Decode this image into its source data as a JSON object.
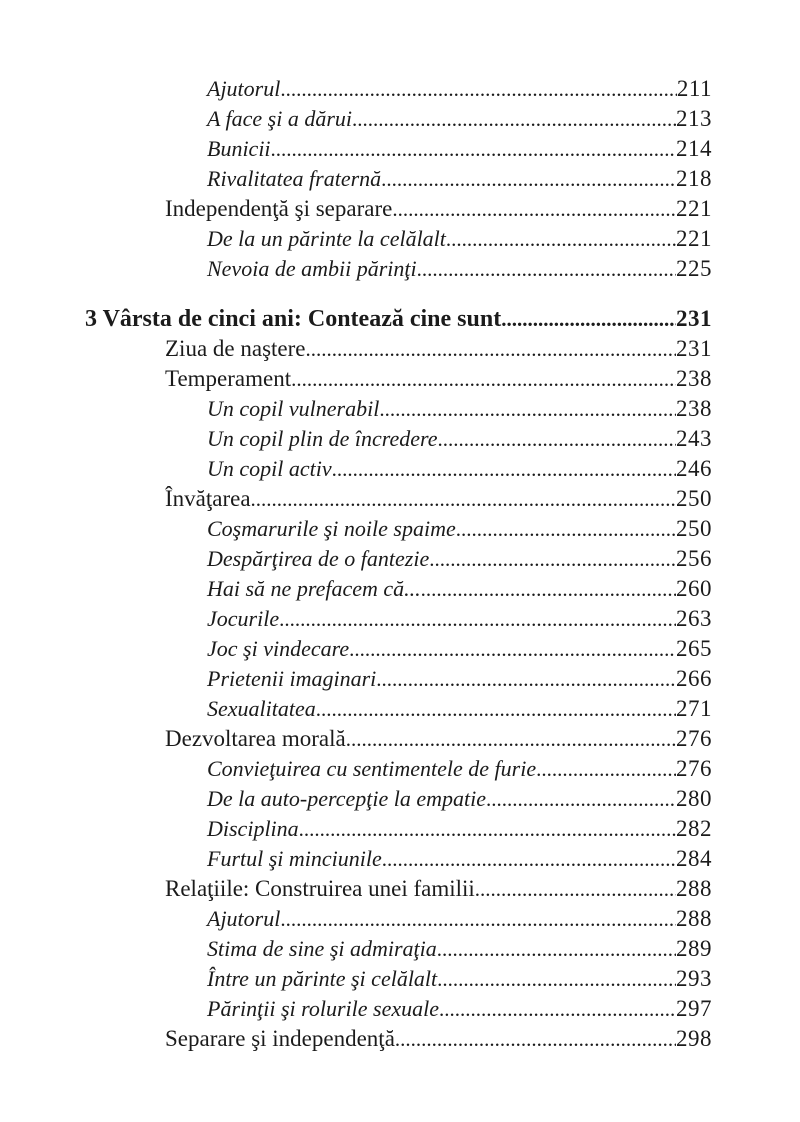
{
  "page": {
    "kind": "book-table-of-contents-scan",
    "background_color": "#ffffff",
    "text_color": "#1b1b1b"
  },
  "toc": {
    "entries": [
      {
        "level": 3,
        "style": "italic",
        "title": "Ajutorul",
        "page": "211"
      },
      {
        "level": 3,
        "style": "italic",
        "title": "A face şi a dărui",
        "page": "213"
      },
      {
        "level": 3,
        "style": "italic",
        "title": "Bunicii",
        "page": "214"
      },
      {
        "level": 3,
        "style": "italic",
        "title": "Rivalitatea fraternă",
        "page": "218"
      },
      {
        "level": 2,
        "style": "regular",
        "title": "Independenţă şi separare",
        "page": "221"
      },
      {
        "level": 3,
        "style": "italic",
        "title": "De la un părinte la celălalt",
        "page": "221"
      },
      {
        "level": 3,
        "style": "italic",
        "title": "Nevoia de ambii părinţi",
        "page": "225"
      },
      {
        "level": 1,
        "style": "bold",
        "title": "3 Vârsta de cinci ani: Contează cine sunt",
        "page": "231"
      },
      {
        "level": 2,
        "style": "regular",
        "title": "Ziua de naştere",
        "page": "231"
      },
      {
        "level": 2,
        "style": "regular",
        "title": "Temperament",
        "page": "238"
      },
      {
        "level": 3,
        "style": "italic",
        "title": "Un copil vulnerabil",
        "page": "238"
      },
      {
        "level": 3,
        "style": "italic",
        "title": "Un copil plin de încredere",
        "page": "243"
      },
      {
        "level": 3,
        "style": "italic",
        "title": "Un copil activ",
        "page": "246"
      },
      {
        "level": 2,
        "style": "regular",
        "title": "Învăţarea",
        "page": "250"
      },
      {
        "level": 3,
        "style": "italic",
        "title": "Coşmarurile şi noile spaime",
        "page": "250"
      },
      {
        "level": 3,
        "style": "italic",
        "title": "Despărţirea de o fantezie",
        "page": "256"
      },
      {
        "level": 3,
        "style": "italic",
        "title": "Hai să ne prefacem că...",
        "page": "260"
      },
      {
        "level": 3,
        "style": "italic",
        "title": "Jocurile",
        "page": "263"
      },
      {
        "level": 3,
        "style": "italic",
        "title": "Joc şi vindecare",
        "page": "265"
      },
      {
        "level": 3,
        "style": "italic",
        "title": "Prietenii imaginari",
        "page": "266"
      },
      {
        "level": 3,
        "style": "italic",
        "title": "Sexualitatea",
        "page": "271"
      },
      {
        "level": 2,
        "style": "regular",
        "title": "Dezvoltarea morală",
        "page": "276"
      },
      {
        "level": 3,
        "style": "italic",
        "title": "Convieţuirea cu sentimentele de furie",
        "page": "276"
      },
      {
        "level": 3,
        "style": "italic",
        "title": "De la auto-percepţie la empatie",
        "page": "280"
      },
      {
        "level": 3,
        "style": "italic",
        "title": "Disciplina",
        "page": "282"
      },
      {
        "level": 3,
        "style": "italic",
        "title": "Furtul şi minciunile",
        "page": "284"
      },
      {
        "level": 2,
        "style": "regular",
        "title": "Relaţiile: Construirea unei familii",
        "page": "288"
      },
      {
        "level": 3,
        "style": "italic",
        "title": "Ajutorul",
        "page": "288"
      },
      {
        "level": 3,
        "style": "italic",
        "title": "Stima de sine şi admiraţia",
        "page": "289"
      },
      {
        "level": 3,
        "style": "italic",
        "title": "Între un părinte şi celălalt",
        "page": "293"
      },
      {
        "level": 3,
        "style": "italic",
        "title": "Părinţii şi rolurile sexuale",
        "page": "297"
      },
      {
        "level": 2,
        "style": "regular",
        "title": "Separare şi independenţă",
        "page": "298"
      }
    ]
  }
}
